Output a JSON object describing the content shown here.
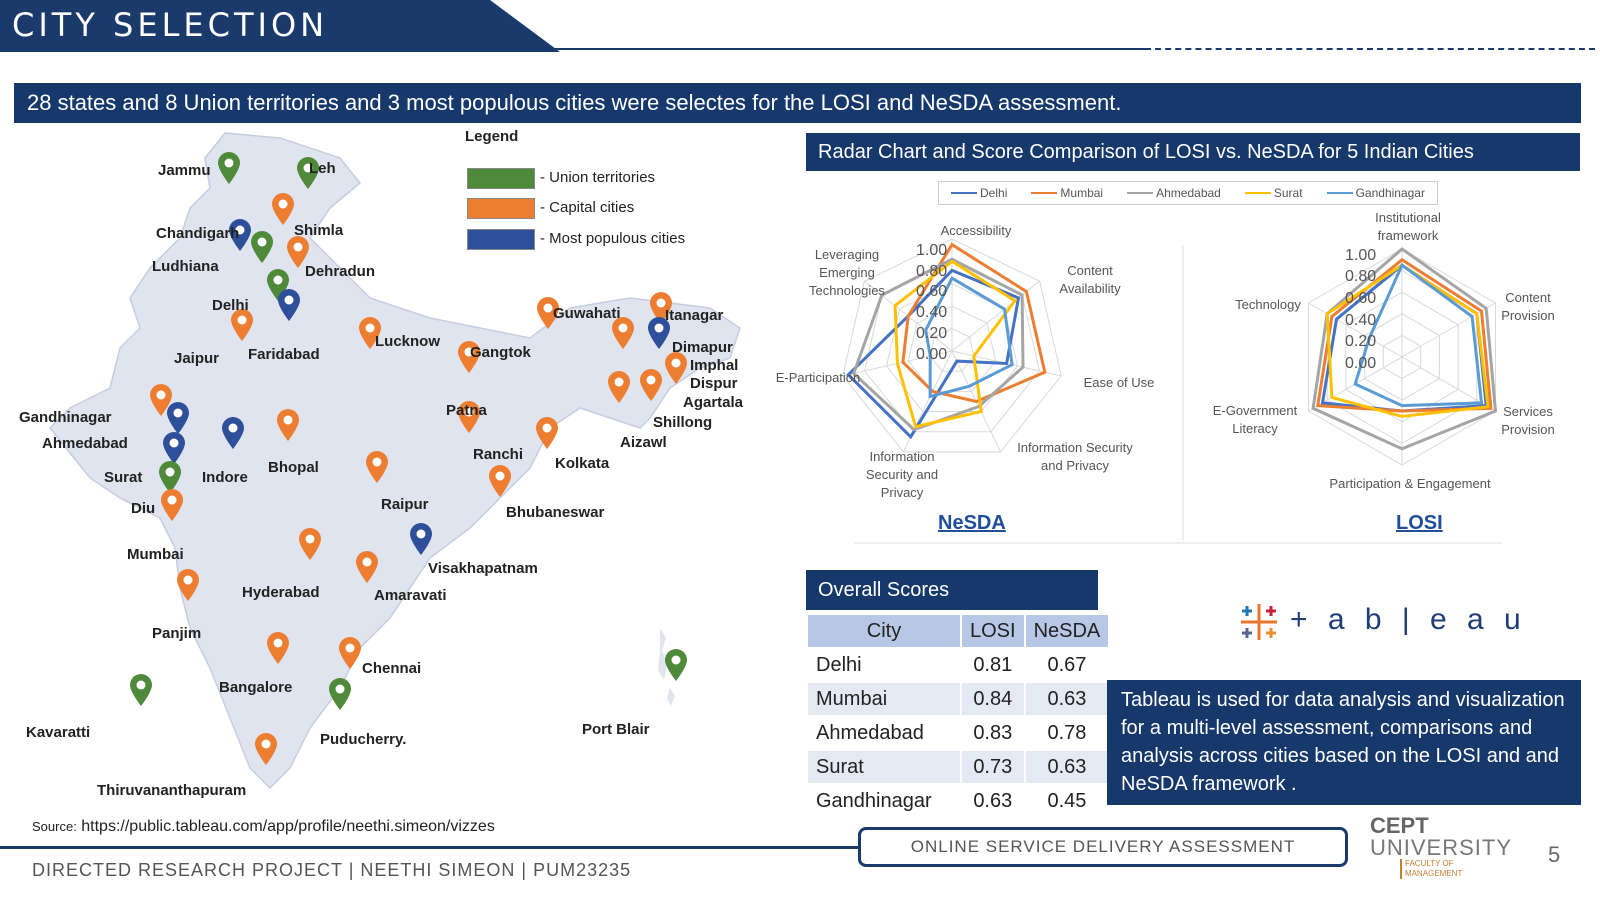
{
  "title": "CITY SELECTION",
  "banner": "28 states and 8 Union territories and 3 most populous cities were selectes for the LOSI and NeSDA assessment.",
  "map": {
    "legend_title": "Legend",
    "legend": [
      {
        "label": "- Union territories",
        "color": "#4e8a3a"
      },
      {
        "label": "- Capital cities",
        "color": "#ed7d31"
      },
      {
        "label": "- Most populous cities",
        "color": "#2e4f99"
      }
    ],
    "cities": [
      "Jammu",
      "Leh",
      "Chandigarh",
      "Shimla",
      "Ludhiana",
      "Dehradun",
      "Delhi",
      "Jaipur",
      "Faridabad",
      "Lucknow",
      "Gangtok",
      "Guwahati",
      "Itanagar",
      "Dimapur",
      "Imphal",
      "Dispur",
      "Agartala",
      "Shillong",
      "Aizawl",
      "Patna",
      "Ranchi",
      "Kolkata",
      "Gandhinagar",
      "Ahmedabad",
      "Surat",
      "Indore",
      "Bhopal",
      "Diu",
      "Raipur",
      "Bhubaneswar",
      "Mumbai",
      "Visakhapatnam",
      "Hyderabad",
      "Amaravati",
      "Panjim",
      "Chennai",
      "Bangalore",
      "Kavaratti",
      "Puducherry.",
      "Port Blair",
      "Thiruvananthapuram"
    ]
  },
  "radar": {
    "header": "Radar Chart and Score Comparison of LOSI vs. NeSDA for 5 Indian Cities",
    "series_legend": [
      {
        "name": "Delhi",
        "color": "#4472c4"
      },
      {
        "name": "Mumbai",
        "color": "#ed7d31"
      },
      {
        "name": "Ahmedabad",
        "color": "#a5a5a5"
      },
      {
        "name": "Surat",
        "color": "#ffc000"
      },
      {
        "name": "Gandhinagar",
        "color": "#5b9bd5"
      }
    ],
    "tick_labels": [
      "1.00",
      "0.80",
      "0.60",
      "0.40",
      "0.20",
      "0.00"
    ],
    "nesda": {
      "title": "NeSDA",
      "axes": [
        "Accessibility",
        "Content Availability",
        "Ease of Use",
        "Information Security and Privacy",
        "Information Security and Privacy",
        "E-Participation",
        "Leveraging Emerging Technologies"
      ]
    },
    "losi": {
      "title": "LOSI",
      "axes": [
        "Institutional framework",
        "Content Provision",
        "Services Provision",
        "Participation & Engagement",
        "E-Government Literacy",
        "Technology"
      ]
    }
  },
  "chart_data": [
    {
      "type": "radar",
      "title": "NeSDA",
      "categories": [
        "Accessibility",
        "Content Availability",
        "Ease of Use",
        "Information Security and Privacy",
        "Information Security and Privacy",
        "E-Participation",
        "Leveraging Emerging Technologies"
      ],
      "rlim": [
        0,
        1
      ],
      "series": [
        {
          "name": "Delhi",
          "values": [
            0.72,
            0.76,
            0.5,
            0.1,
            0.85,
            0.95,
            0.5
          ]
        },
        {
          "name": "Mumbai",
          "values": [
            0.95,
            0.85,
            0.85,
            0.5,
            0.4,
            0.45,
            0.5
          ]
        },
        {
          "name": "Ahmedabad",
          "values": [
            0.82,
            0.8,
            0.65,
            0.55,
            0.78,
            0.9,
            0.8
          ]
        },
        {
          "name": "Surat",
          "values": [
            0.8,
            0.72,
            0.2,
            0.6,
            0.75,
            0.5,
            0.65
          ]
        },
        {
          "name": "Gandhinagar",
          "values": [
            0.65,
            0.6,
            0.55,
            0.35,
            0.45,
            0.2,
            0.3
          ]
        }
      ]
    },
    {
      "type": "radar",
      "title": "LOSI",
      "categories": [
        "Institutional framework",
        "Content Provision",
        "Services Provision",
        "Participation & Engagement",
        "E-Government Literacy",
        "Technology"
      ],
      "rlim": [
        0,
        1
      ],
      "series": [
        {
          "name": "Delhi",
          "values": [
            0.85,
            0.8,
            0.9,
            0.5,
            0.85,
            0.7
          ]
        },
        {
          "name": "Mumbai",
          "values": [
            0.9,
            0.85,
            0.95,
            0.5,
            0.9,
            0.75
          ]
        },
        {
          "name": "Ahmedabad",
          "values": [
            1.0,
            0.9,
            1.0,
            0.85,
            0.95,
            0.8
          ]
        },
        {
          "name": "Surat",
          "values": [
            0.85,
            0.8,
            0.92,
            0.55,
            0.75,
            0.8
          ]
        },
        {
          "name": "Gandhinagar",
          "values": [
            0.85,
            0.75,
            0.85,
            0.45,
            0.5,
            0.35
          ]
        }
      ]
    }
  ],
  "scores": {
    "header": "Overall Scores",
    "columns": [
      "City",
      "LOSI",
      "NeSDA"
    ],
    "rows": [
      [
        "Delhi",
        "0.81",
        "0.67"
      ],
      [
        "Mumbai",
        "0.84",
        "0.63"
      ],
      [
        "Ahmedabad",
        "0.83",
        "0.78"
      ],
      [
        "Surat",
        "0.73",
        "0.63"
      ],
      [
        "Gandhinagar",
        "0.63",
        "0.45"
      ]
    ]
  },
  "tableau": {
    "logo": "+ a b | e a u",
    "text": "Tableau is used for data analysis and visualization for a multi-level assessment, comparisons and analysis across cities based on the LOSI and and NeSDA framework ."
  },
  "source": {
    "label": "Source:",
    "url": "https://public.tableau.com/app/profile/neethi.simeon/vizzes"
  },
  "footer": {
    "left": "DIRECTED RESEARCH PROJECT | NEETHI SIMEON | PUM23235",
    "box": "ONLINE SERVICE DELIVERY ASSESSMENT",
    "logo_line1": "CEPT",
    "logo_line2": "UNIVERSITY",
    "logo_line3": "FACULTY OF MANAGEMENT",
    "page": "5"
  }
}
